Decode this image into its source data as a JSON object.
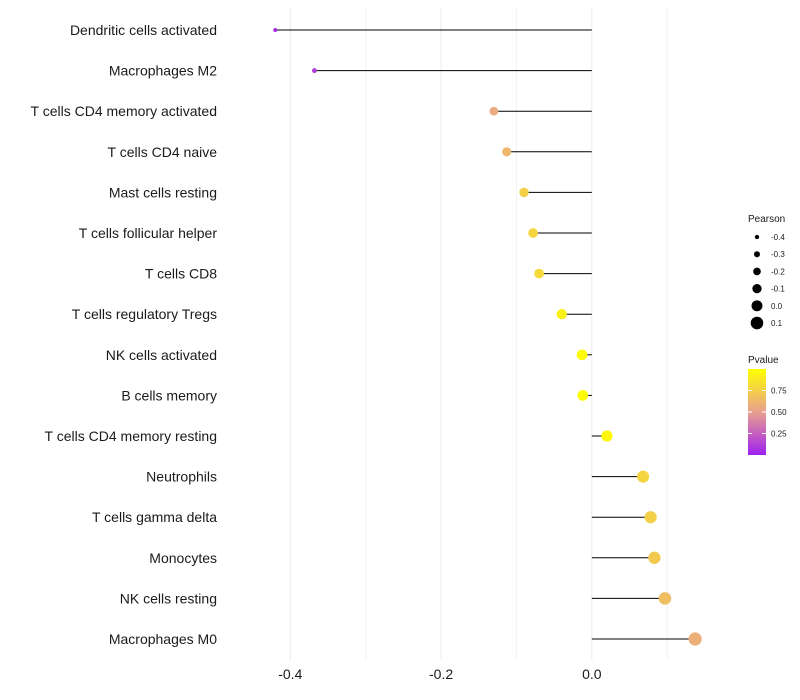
{
  "chart_data": {
    "type": "lollipop",
    "categories": [
      "Dendritic cells activated",
      "Macrophages M2",
      "T cells CD4 memory activated",
      "T cells CD4 naive",
      "Mast cells resting",
      "T cells follicular helper",
      "T cells CD8",
      "T cells regulatory  Tregs ",
      "NK cells activated",
      "B cells memory",
      "T cells CD4 memory resting",
      "Neutrophils",
      "T cells gamma delta",
      "Monocytes",
      "NK cells resting",
      "Macrophages M0"
    ],
    "pearson": [
      -0.42,
      -0.368,
      -0.13,
      -0.113,
      -0.09,
      -0.078,
      -0.07,
      -0.04,
      -0.013,
      -0.012,
      0.02,
      0.068,
      0.078,
      0.083,
      0.097,
      0.137
    ],
    "pvalue": [
      0.05,
      0.12,
      0.55,
      0.62,
      0.75,
      0.78,
      0.8,
      0.92,
      0.98,
      0.98,
      0.95,
      0.78,
      0.75,
      0.72,
      0.66,
      0.58
    ],
    "xlim": [
      -0.48,
      0.17
    ],
    "x_ticks": [
      -0.4,
      -0.2,
      0.0
    ],
    "x_tick_labels": [
      "-0.4",
      "-0.2",
      "0.0"
    ],
    "xlabel": "",
    "ylabel": "",
    "grid": true,
    "legend_position": "right",
    "size_legend": {
      "title": "Pearson",
      "values": [
        -0.4,
        -0.3,
        -0.2,
        -0.1,
        0.0,
        0.1
      ],
      "labels": [
        "-0.4",
        "-0.3",
        "-0.2",
        "-0.1",
        "0.0",
        "0.1"
      ]
    },
    "color_legend": {
      "title": "Pvalue",
      "range": [
        0.0,
        1.0
      ],
      "ticks": [
        0.25,
        0.5,
        0.75
      ],
      "tick_labels": [
        "0.25",
        "0.50",
        "0.75"
      ],
      "low_color": "#a020f0",
      "mid_color": "#e8a090",
      "high_color": "#ffff00"
    }
  }
}
